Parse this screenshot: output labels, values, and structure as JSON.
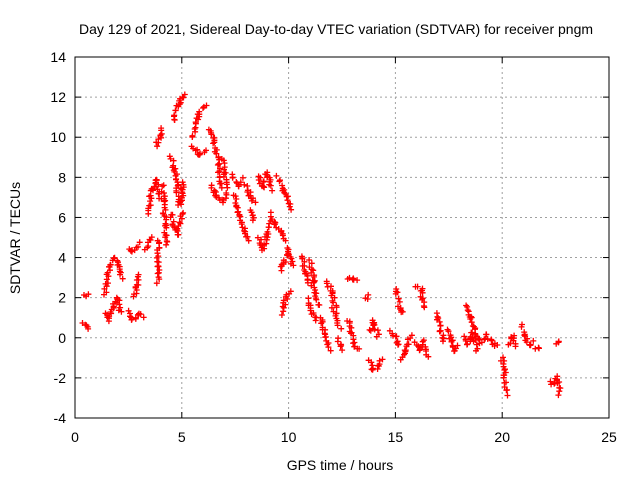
{
  "chart_data": {
    "type": "scatter",
    "title": "Day 129 of 2021, Sidereal Day-to-day VTEC variation (SDTVAR) for receiver pngm",
    "xlabel": "GPS time / hours",
    "ylabel": "SDTVAR / TECUs",
    "xlim": [
      0,
      25
    ],
    "ylim": [
      -4,
      14
    ],
    "xticks": [
      0,
      5,
      10,
      15,
      20,
      25
    ],
    "yticks": [
      -4,
      -2,
      0,
      2,
      4,
      6,
      8,
      10,
      12,
      14
    ],
    "grid": true,
    "marker": "+",
    "color": "#ff0000",
    "series": [
      {
        "name": "SDTVAR",
        "segments": [
          [
            [
              0.4,
              2.1
            ],
            [
              0.6,
              2.2
            ]
          ],
          [
            [
              0.4,
              0.8
            ],
            [
              0.6,
              0.4
            ]
          ],
          [
            [
              1.4,
              2.2
            ],
            [
              1.6,
              3.6
            ],
            [
              1.8,
              3.9
            ]
          ],
          [
            [
              1.4,
              1.2
            ],
            [
              1.6,
              0.9
            ],
            [
              1.8,
              1.6
            ],
            [
              2.0,
              2.0
            ],
            [
              2.1,
              1.3
            ]
          ],
          [
            [
              1.9,
              4.0
            ],
            [
              2.1,
              3.6
            ],
            [
              2.2,
              3.0
            ]
          ],
          [
            [
              2.5,
              4.5
            ],
            [
              2.7,
              4.3
            ],
            [
              3.0,
              4.7
            ]
          ],
          [
            [
              2.5,
              1.3
            ],
            [
              2.7,
              0.9
            ],
            [
              3.0,
              1.2
            ],
            [
              3.2,
              1.0
            ]
          ],
          [
            [
              2.8,
              2.0
            ],
            [
              2.9,
              2.6
            ],
            [
              3.0,
              3.2
            ]
          ],
          [
            [
              3.3,
              4.4
            ],
            [
              3.6,
              5.0
            ]
          ],
          [
            [
              3.4,
              6.2
            ],
            [
              3.6,
              7.4
            ],
            [
              3.8,
              7.9
            ],
            [
              4.0,
              6.9
            ]
          ],
          [
            [
              3.9,
              4.9
            ],
            [
              3.9,
              3.6
            ],
            [
              3.9,
              2.8
            ]
          ],
          [
            [
              3.8,
              9.6
            ],
            [
              4.0,
              10.1
            ],
            [
              4.1,
              10.4
            ]
          ],
          [
            [
              4.1,
              7.6
            ],
            [
              4.2,
              6.0
            ],
            [
              4.3,
              4.6
            ]
          ],
          [
            [
              4.5,
              9.0
            ],
            [
              4.7,
              8.3
            ],
            [
              4.9,
              7.4
            ]
          ],
          [
            [
              4.5,
              6.2
            ],
            [
              4.6,
              5.6
            ],
            [
              4.8,
              5.2
            ],
            [
              5.0,
              6.3
            ]
          ],
          [
            [
              4.6,
              10.8
            ],
            [
              4.8,
              11.5
            ],
            [
              5.0,
              12.0
            ],
            [
              5.1,
              12.1
            ]
          ],
          [
            [
              4.7,
              7.4
            ],
            [
              4.9,
              6.6
            ],
            [
              5.0,
              6.9
            ],
            [
              5.1,
              7.8
            ]
          ],
          [
            [
              5.5,
              10.0
            ],
            [
              5.8,
              11.2
            ],
            [
              6.1,
              11.6
            ]
          ],
          [
            [
              5.5,
              9.6
            ],
            [
              5.8,
              9.1
            ],
            [
              6.1,
              9.3
            ]
          ],
          [
            [
              6.3,
              10.4
            ],
            [
              6.5,
              9.9
            ],
            [
              6.7,
              8.7
            ],
            [
              6.8,
              7.5
            ]
          ],
          [
            [
              6.4,
              7.6
            ],
            [
              6.6,
              7.1
            ],
            [
              6.9,
              6.8
            ],
            [
              7.1,
              7.2
            ]
          ],
          [
            [
              6.9,
              8.9
            ],
            [
              7.1,
              7.5
            ]
          ],
          [
            [
              7.3,
              8.1
            ],
            [
              7.6,
              7.6
            ],
            [
              7.8,
              7.9
            ]
          ],
          [
            [
              7.5,
              7.1
            ],
            [
              7.7,
              6.1
            ],
            [
              7.9,
              5.4
            ],
            [
              8.2,
              4.9
            ]
          ],
          [
            [
              8.0,
              7.6
            ],
            [
              8.2,
              7.1
            ],
            [
              8.4,
              6.7
            ]
          ],
          [
            [
              8.2,
              6.4
            ],
            [
              8.4,
              5.8
            ]
          ],
          [
            [
              8.6,
              8.0
            ],
            [
              8.8,
              7.5
            ],
            [
              9.0,
              8.2
            ],
            [
              9.2,
              7.4
            ]
          ],
          [
            [
              8.6,
              5.0
            ],
            [
              8.8,
              4.4
            ],
            [
              9.0,
              5.2
            ],
            [
              9.1,
              5.8
            ]
          ],
          [
            [
              9.2,
              6.2
            ],
            [
              9.4,
              5.6
            ],
            [
              9.7,
              5.2
            ],
            [
              9.9,
              4.9
            ]
          ],
          [
            [
              9.5,
              8.0
            ],
            [
              9.7,
              7.4
            ],
            [
              9.9,
              7.0
            ],
            [
              10.1,
              6.4
            ]
          ],
          [
            [
              9.6,
              3.4
            ],
            [
              9.8,
              3.8
            ],
            [
              10.0,
              4.4
            ],
            [
              10.2,
              3.6
            ]
          ],
          [
            [
              9.7,
              1.2
            ],
            [
              9.9,
              2.1
            ],
            [
              10.1,
              2.3
            ]
          ],
          [
            [
              10.6,
              4.1
            ],
            [
              10.8,
              3.2
            ],
            [
              11.0,
              2.6
            ]
          ],
          [
            [
              11.0,
              3.8
            ],
            [
              11.2,
              2.8
            ],
            [
              11.4,
              1.6
            ]
          ],
          [
            [
              10.9,
              1.9
            ],
            [
              11.1,
              1.2
            ],
            [
              11.3,
              0.9
            ]
          ],
          [
            [
              11.5,
              1.0
            ],
            [
              11.7,
              0.1
            ],
            [
              11.9,
              -0.6
            ]
          ],
          [
            [
              11.8,
              2.8
            ],
            [
              12.0,
              2.3
            ],
            [
              12.2,
              1.5
            ]
          ],
          [
            [
              12.1,
              1.5
            ],
            [
              12.3,
              0.9
            ],
            [
              12.4,
              0.5
            ]
          ],
          [
            [
              12.3,
              -0.1
            ],
            [
              12.5,
              -0.6
            ]
          ],
          [
            [
              12.8,
              3.0
            ],
            [
              13.0,
              2.9
            ],
            [
              13.2,
              2.9
            ]
          ],
          [
            [
              12.8,
              0.9
            ],
            [
              12.9,
              0.3
            ],
            [
              13.1,
              -0.4
            ],
            [
              13.3,
              -0.6
            ]
          ],
          [
            [
              13.6,
              1.9
            ],
            [
              13.7,
              2.1
            ]
          ],
          [
            [
              13.8,
              0.3
            ],
            [
              14.0,
              0.8
            ],
            [
              14.2,
              0.1
            ]
          ],
          [
            [
              13.8,
              -1.2
            ],
            [
              14.0,
              -1.6
            ],
            [
              14.2,
              -1.4
            ],
            [
              14.4,
              -1.1
            ]
          ],
          [
            [
              14.8,
              0.3
            ],
            [
              15.0,
              0.0
            ],
            [
              15.2,
              -0.4
            ]
          ],
          [
            [
              15.0,
              2.5
            ],
            [
              15.2,
              1.4
            ],
            [
              15.4,
              1.3
            ]
          ],
          [
            [
              15.3,
              -1.1
            ],
            [
              15.5,
              -0.6
            ],
            [
              15.7,
              0.1
            ]
          ],
          [
            [
              16.0,
              2.6
            ],
            [
              16.2,
              2.4
            ],
            [
              16.3,
              1.5
            ]
          ],
          [
            [
              15.9,
              -0.3
            ],
            [
              16.1,
              -0.6
            ],
            [
              16.3,
              -0.2
            ],
            [
              16.5,
              -0.9
            ]
          ],
          [
            [
              16.9,
              1.2
            ],
            [
              17.1,
              0.4
            ],
            [
              17.3,
              -0.2
            ]
          ],
          [
            [
              17.5,
              0.4
            ],
            [
              17.7,
              -0.6
            ],
            [
              17.9,
              -0.4
            ]
          ],
          [
            [
              18.3,
              1.6
            ],
            [
              18.5,
              1.1
            ],
            [
              18.7,
              0.5
            ],
            [
              18.9,
              -0.3
            ]
          ],
          [
            [
              18.2,
              0.0
            ],
            [
              18.4,
              -0.3
            ],
            [
              18.6,
              0.2
            ],
            [
              18.8,
              -0.6
            ]
          ],
          [
            [
              19.1,
              -0.2
            ],
            [
              19.3,
              0.1
            ],
            [
              19.6,
              -0.3
            ],
            [
              19.8,
              -0.4
            ]
          ],
          [
            [
              20.0,
              -1.0
            ],
            [
              20.1,
              -1.8
            ],
            [
              20.2,
              -2.8
            ]
          ],
          [
            [
              20.3,
              -0.3
            ],
            [
              20.5,
              0.1
            ],
            [
              20.6,
              -0.4
            ]
          ],
          [
            [
              20.9,
              0.6
            ],
            [
              21.1,
              0.0
            ],
            [
              21.3,
              -0.4
            ],
            [
              21.5,
              -0.2
            ]
          ],
          [
            [
              21.6,
              -0.5
            ],
            [
              21.7,
              -0.6
            ]
          ],
          [
            [
              22.2,
              -2.2
            ],
            [
              22.4,
              -2.3
            ],
            [
              22.6,
              -2.0
            ],
            [
              22.7,
              -2.8
            ]
          ],
          [
            [
              22.6,
              -0.3
            ],
            [
              22.7,
              -0.2
            ]
          ]
        ]
      }
    ]
  }
}
